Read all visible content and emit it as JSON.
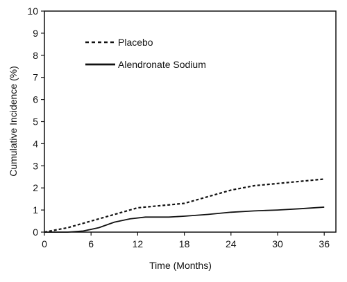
{
  "chart_data": {
    "type": "line",
    "xlabel": "Time (Months)",
    "ylabel": "Cumulative Incidence (%)",
    "xlim": [
      0,
      37.5
    ],
    "ylim": [
      0,
      10
    ],
    "x_ticks": [
      0,
      6,
      12,
      18,
      24,
      30,
      36
    ],
    "y_ticks": [
      0,
      1,
      2,
      3,
      4,
      5,
      6,
      7,
      8,
      9,
      10
    ],
    "grid": false,
    "legend_position": "top-left",
    "series": [
      {
        "name": "Placebo",
        "style": "dashed",
        "color": "#111111",
        "x": [
          0,
          3,
          6,
          9,
          12,
          15,
          18,
          21,
          24,
          27,
          30,
          33,
          36
        ],
        "y": [
          0.0,
          0.2,
          0.5,
          0.8,
          1.1,
          1.2,
          1.3,
          1.6,
          1.9,
          2.1,
          2.2,
          2.3,
          2.4
        ]
      },
      {
        "name": "Alendronate Sodium",
        "style": "solid",
        "color": "#111111",
        "x": [
          0,
          3,
          5,
          7,
          9,
          11,
          13,
          16,
          18,
          21,
          24,
          27,
          30,
          33,
          36
        ],
        "y": [
          0.0,
          0.0,
          0.05,
          0.2,
          0.45,
          0.6,
          0.68,
          0.68,
          0.72,
          0.8,
          0.9,
          0.96,
          1.0,
          1.06,
          1.13
        ]
      }
    ]
  }
}
